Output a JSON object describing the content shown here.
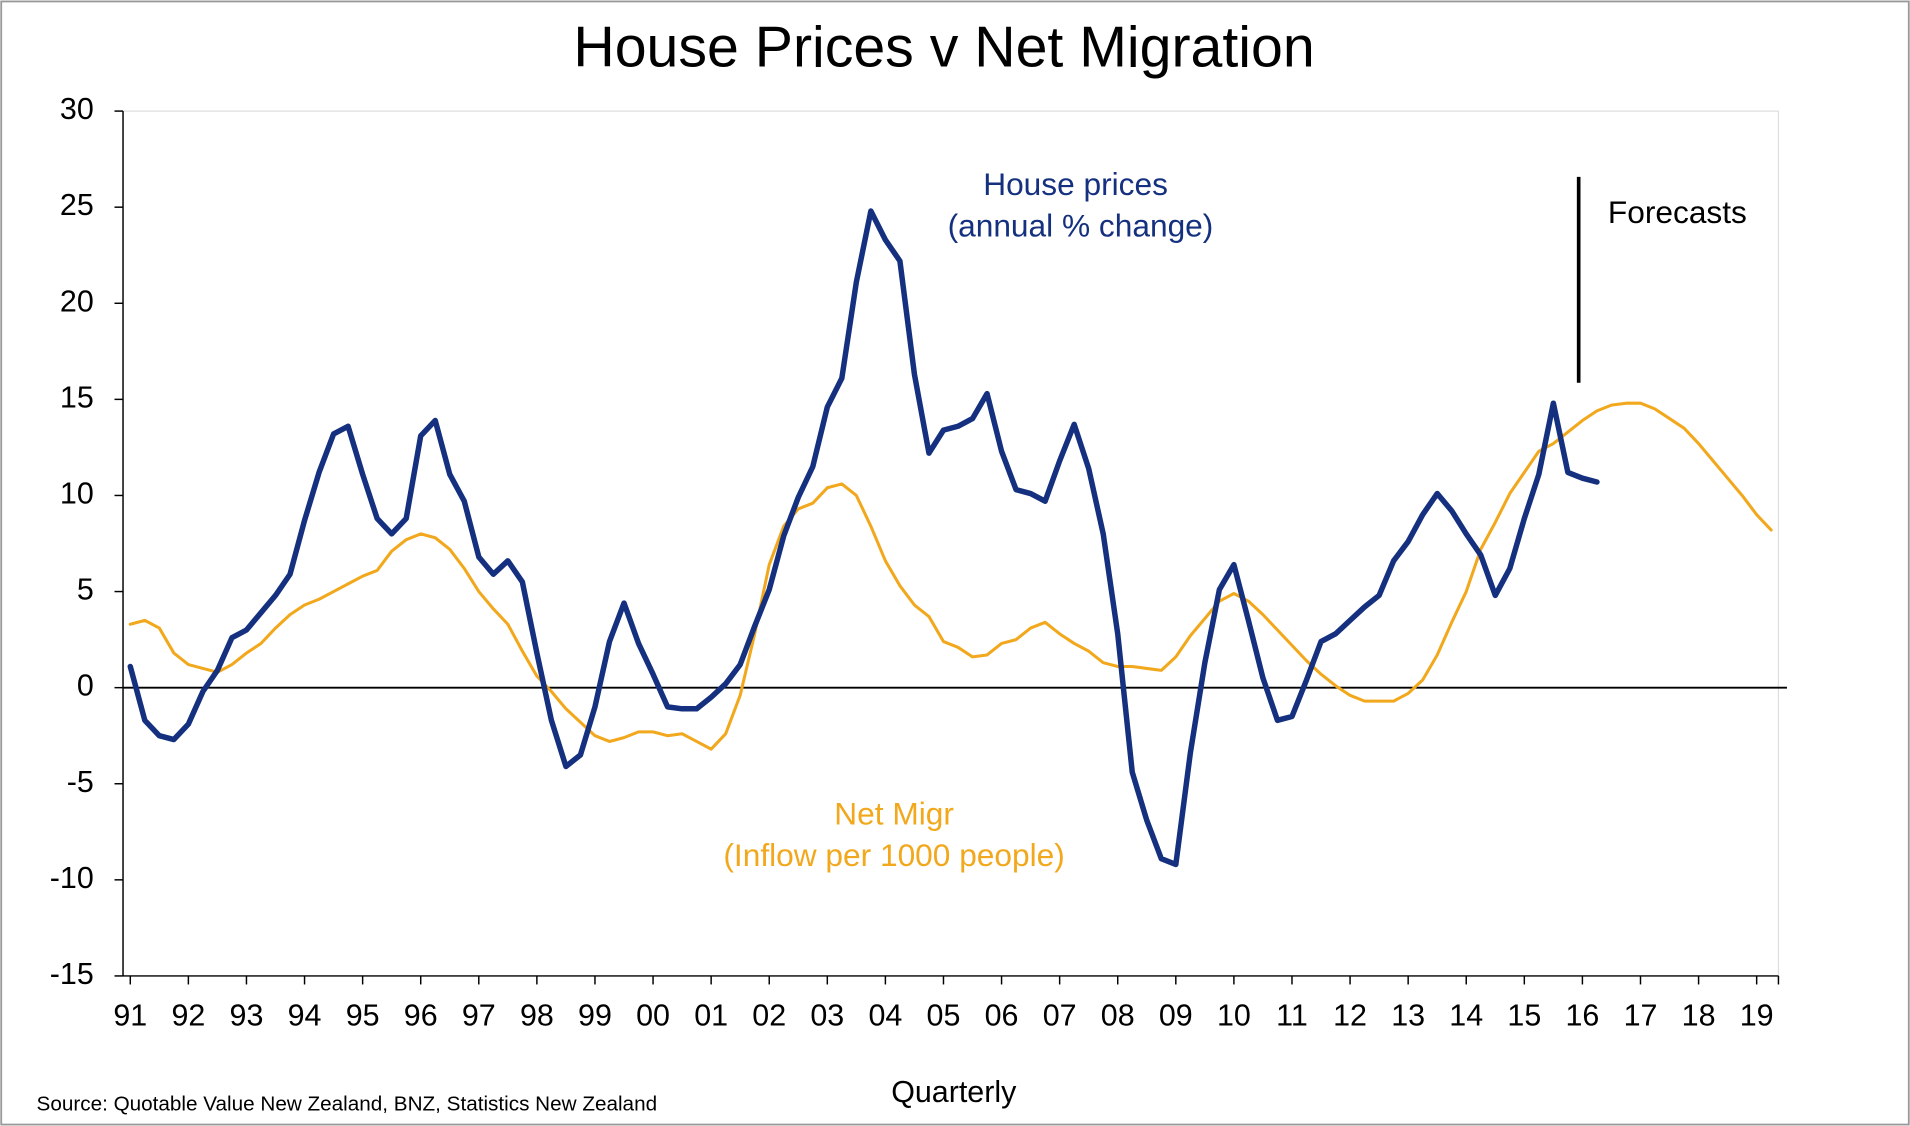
{
  "chart_data": {
    "type": "line",
    "title": "House Prices v Net Migration",
    "xlabel": "Quarterly",
    "source": "Source: Quotable Value New Zealand, BNZ, Statistics New Zealand",
    "annotations": [
      "House prices",
      "(annual % change)",
      "Net Migr",
      "(Inflow per 1000 people)",
      "Forecasts"
    ],
    "categories": [
      "91",
      null,
      null,
      null,
      "92",
      null,
      null,
      null,
      "93",
      null,
      null,
      null,
      "94",
      null,
      null,
      null,
      "95",
      null,
      null,
      null,
      "96",
      null,
      null,
      null,
      "97",
      null,
      null,
      null,
      "98",
      null,
      null,
      null,
      "99",
      null,
      null,
      null,
      "00",
      null,
      null,
      null,
      "01",
      null,
      null,
      null,
      "02",
      null,
      null,
      null,
      "03",
      null,
      null,
      null,
      "04",
      null,
      null,
      null,
      "05",
      null,
      null,
      null,
      "06",
      null,
      null,
      null,
      "07",
      null,
      null,
      null,
      "08",
      null,
      null,
      null,
      "09",
      null,
      null,
      null,
      "10",
      null,
      null,
      null,
      "11",
      null,
      null,
      null,
      "12",
      null,
      null,
      null,
      "13",
      null,
      null,
      null,
      "14",
      null,
      null,
      null,
      "15",
      null,
      null,
      null,
      "16",
      null,
      null,
      null,
      "17",
      null,
      null,
      null,
      "18",
      null,
      null,
      null,
      "19",
      null
    ],
    "series": [
      {
        "name": "House prices",
        "color": "#14307f",
        "values": [
          1.1,
          -1.7,
          -2.5,
          -2.7,
          -1.9,
          -0.2,
          0.9,
          2.6,
          3.0,
          3.9,
          4.8,
          5.9,
          8.7,
          11.2,
          13.2,
          13.6,
          11.1,
          8.8,
          8.0,
          8.8,
          13.1,
          13.9,
          11.1,
          9.7,
          6.8,
          5.9,
          6.6,
          5.5,
          1.8,
          -1.7,
          -4.1,
          -3.5,
          -1.0,
          2.4,
          4.4,
          2.3,
          0.7,
          -1.0,
          -1.1,
          -1.1,
          -0.5,
          0.2,
          1.2,
          3.2,
          5.1,
          7.9,
          9.9,
          11.5,
          14.6,
          16.1,
          21.1,
          24.8,
          23.3,
          22.2,
          16.3,
          12.2,
          13.4,
          13.6,
          14.0,
          15.3,
          12.3,
          10.3,
          10.1,
          9.7,
          11.8,
          13.7,
          11.4,
          8.0,
          2.8,
          -4.4,
          -6.9,
          -8.9,
          -9.2,
          -3.4,
          1.3,
          5.1,
          6.4,
          3.5,
          0.5,
          -1.7,
          -1.5,
          0.4,
          2.4,
          2.8,
          3.5,
          4.2,
          4.8,
          6.6,
          7.6,
          9.0,
          10.1,
          9.2,
          8.0,
          6.9,
          4.8,
          6.2,
          8.8,
          11.1,
          14.8,
          11.2,
          10.9,
          10.7,
          null,
          null,
          null,
          null,
          null,
          null,
          null,
          null,
          null,
          null,
          null,
          null
        ]
      },
      {
        "name": "Net Migr",
        "color": "#f2a81d",
        "values": [
          3.3,
          3.5,
          3.1,
          1.8,
          1.2,
          1.0,
          0.8,
          1.2,
          1.8,
          2.3,
          3.1,
          3.8,
          4.3,
          4.6,
          5.0,
          5.4,
          5.8,
          6.1,
          7.1,
          7.7,
          8.0,
          7.8,
          7.2,
          6.2,
          5.0,
          4.1,
          3.3,
          1.9,
          0.6,
          -0.2,
          -1.1,
          -1.8,
          -2.5,
          -2.8,
          -2.6,
          -2.3,
          -2.3,
          -2.5,
          -2.4,
          -2.8,
          -3.2,
          -2.4,
          -0.4,
          2.8,
          6.4,
          8.4,
          9.3,
          9.6,
          10.4,
          10.6,
          10.0,
          8.4,
          6.6,
          5.3,
          4.3,
          3.7,
          2.4,
          2.1,
          1.6,
          1.7,
          2.3,
          2.5,
          3.1,
          3.4,
          2.8,
          2.3,
          1.9,
          1.3,
          1.1,
          1.1,
          1.0,
          0.9,
          1.6,
          2.7,
          3.6,
          4.5,
          4.9,
          4.5,
          3.8,
          3.0,
          2.2,
          1.4,
          0.7,
          0.1,
          -0.4,
          -0.7,
          -0.7,
          -0.7,
          -0.3,
          0.4,
          1.7,
          3.4,
          5.0,
          7.2,
          8.6,
          10.1,
          11.2,
          12.3,
          12.7,
          13.3,
          13.9,
          14.4,
          14.7,
          14.8,
          14.8,
          14.5,
          14.0,
          13.5,
          12.7,
          11.8,
          10.9,
          10.0,
          9.0,
          8.2
        ]
      }
    ],
    "ylim": [
      -15,
      30
    ],
    "yticks": [
      -15,
      -10,
      -5,
      0,
      5,
      10,
      15,
      20,
      25,
      30
    ]
  }
}
